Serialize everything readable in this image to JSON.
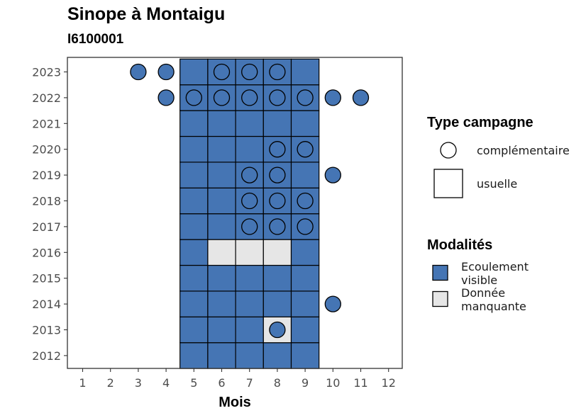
{
  "chart_data": {
    "type": "heatmap",
    "title": "Sinope à Montaigu",
    "subtitle": "I6100001",
    "xlabel": "Mois",
    "ylabel": "",
    "x": [
      1,
      2,
      3,
      4,
      5,
      6,
      7,
      8,
      9,
      10,
      11,
      12
    ],
    "y": [
      2012,
      2013,
      2014,
      2015,
      2016,
      2017,
      2018,
      2019,
      2020,
      2021,
      2022,
      2023
    ],
    "colors": {
      "Ecoulement visible": "#4575b4",
      "Donnée manquante": "#e6e6e6"
    },
    "cells": [
      {
        "year": 2012,
        "month": 5,
        "modalite": "Ecoulement visible",
        "type": "usuelle"
      },
      {
        "year": 2012,
        "month": 6,
        "modalite": "Ecoulement visible",
        "type": "usuelle"
      },
      {
        "year": 2012,
        "month": 7,
        "modalite": "Ecoulement visible",
        "type": "usuelle"
      },
      {
        "year": 2012,
        "month": 8,
        "modalite": "Ecoulement visible",
        "type": "usuelle"
      },
      {
        "year": 2012,
        "month": 9,
        "modalite": "Ecoulement visible",
        "type": "usuelle"
      },
      {
        "year": 2013,
        "month": 5,
        "modalite": "Ecoulement visible",
        "type": "usuelle"
      },
      {
        "year": 2013,
        "month": 6,
        "modalite": "Ecoulement visible",
        "type": "usuelle"
      },
      {
        "year": 2013,
        "month": 7,
        "modalite": "Ecoulement visible",
        "type": "usuelle"
      },
      {
        "year": 2013,
        "month": 8,
        "modalite": "Donnée manquante",
        "type": "usuelle"
      },
      {
        "year": 2013,
        "month": 9,
        "modalite": "Ecoulement visible",
        "type": "usuelle"
      },
      {
        "year": 2014,
        "month": 5,
        "modalite": "Ecoulement visible",
        "type": "usuelle"
      },
      {
        "year": 2014,
        "month": 6,
        "modalite": "Ecoulement visible",
        "type": "usuelle"
      },
      {
        "year": 2014,
        "month": 7,
        "modalite": "Ecoulement visible",
        "type": "usuelle"
      },
      {
        "year": 2014,
        "month": 8,
        "modalite": "Ecoulement visible",
        "type": "usuelle"
      },
      {
        "year": 2014,
        "month": 9,
        "modalite": "Ecoulement visible",
        "type": "usuelle"
      },
      {
        "year": 2015,
        "month": 5,
        "modalite": "Ecoulement visible",
        "type": "usuelle"
      },
      {
        "year": 2015,
        "month": 6,
        "modalite": "Ecoulement visible",
        "type": "usuelle"
      },
      {
        "year": 2015,
        "month": 7,
        "modalite": "Ecoulement visible",
        "type": "usuelle"
      },
      {
        "year": 2015,
        "month": 8,
        "modalite": "Ecoulement visible",
        "type": "usuelle"
      },
      {
        "year": 2015,
        "month": 9,
        "modalite": "Ecoulement visible",
        "type": "usuelle"
      },
      {
        "year": 2016,
        "month": 5,
        "modalite": "Ecoulement visible",
        "type": "usuelle"
      },
      {
        "year": 2016,
        "month": 6,
        "modalite": "Donnée manquante",
        "type": "usuelle"
      },
      {
        "year": 2016,
        "month": 7,
        "modalite": "Donnée manquante",
        "type": "usuelle"
      },
      {
        "year": 2016,
        "month": 8,
        "modalite": "Donnée manquante",
        "type": "usuelle"
      },
      {
        "year": 2016,
        "month": 9,
        "modalite": "Ecoulement visible",
        "type": "usuelle"
      },
      {
        "year": 2017,
        "month": 5,
        "modalite": "Ecoulement visible",
        "type": "usuelle"
      },
      {
        "year": 2017,
        "month": 6,
        "modalite": "Ecoulement visible",
        "type": "usuelle"
      },
      {
        "year": 2017,
        "month": 7,
        "modalite": "Ecoulement visible",
        "type": "usuelle"
      },
      {
        "year": 2017,
        "month": 8,
        "modalite": "Ecoulement visible",
        "type": "usuelle"
      },
      {
        "year": 2017,
        "month": 9,
        "modalite": "Ecoulement visible",
        "type": "usuelle"
      },
      {
        "year": 2018,
        "month": 5,
        "modalite": "Ecoulement visible",
        "type": "usuelle"
      },
      {
        "year": 2018,
        "month": 6,
        "modalite": "Ecoulement visible",
        "type": "usuelle"
      },
      {
        "year": 2018,
        "month": 7,
        "modalite": "Ecoulement visible",
        "type": "usuelle"
      },
      {
        "year": 2018,
        "month": 8,
        "modalite": "Ecoulement visible",
        "type": "usuelle"
      },
      {
        "year": 2018,
        "month": 9,
        "modalite": "Ecoulement visible",
        "type": "usuelle"
      },
      {
        "year": 2019,
        "month": 5,
        "modalite": "Ecoulement visible",
        "type": "usuelle"
      },
      {
        "year": 2019,
        "month": 6,
        "modalite": "Ecoulement visible",
        "type": "usuelle"
      },
      {
        "year": 2019,
        "month": 7,
        "modalite": "Ecoulement visible",
        "type": "usuelle"
      },
      {
        "year": 2019,
        "month": 8,
        "modalite": "Ecoulement visible",
        "type": "usuelle"
      },
      {
        "year": 2019,
        "month": 9,
        "modalite": "Ecoulement visible",
        "type": "usuelle"
      },
      {
        "year": 2020,
        "month": 5,
        "modalite": "Ecoulement visible",
        "type": "usuelle"
      },
      {
        "year": 2020,
        "month": 6,
        "modalite": "Ecoulement visible",
        "type": "usuelle"
      },
      {
        "year": 2020,
        "month": 7,
        "modalite": "Ecoulement visible",
        "type": "usuelle"
      },
      {
        "year": 2020,
        "month": 8,
        "modalite": "Ecoulement visible",
        "type": "usuelle"
      },
      {
        "year": 2020,
        "month": 9,
        "modalite": "Ecoulement visible",
        "type": "usuelle"
      },
      {
        "year": 2021,
        "month": 5,
        "modalite": "Ecoulement visible",
        "type": "usuelle"
      },
      {
        "year": 2021,
        "month": 6,
        "modalite": "Ecoulement visible",
        "type": "usuelle"
      },
      {
        "year": 2021,
        "month": 7,
        "modalite": "Ecoulement visible",
        "type": "usuelle"
      },
      {
        "year": 2021,
        "month": 8,
        "modalite": "Ecoulement visible",
        "type": "usuelle"
      },
      {
        "year": 2021,
        "month": 9,
        "modalite": "Ecoulement visible",
        "type": "usuelle"
      },
      {
        "year": 2022,
        "month": 5,
        "modalite": "Ecoulement visible",
        "type": "usuelle"
      },
      {
        "year": 2022,
        "month": 6,
        "modalite": "Ecoulement visible",
        "type": "usuelle"
      },
      {
        "year": 2022,
        "month": 7,
        "modalite": "Ecoulement visible",
        "type": "usuelle"
      },
      {
        "year": 2022,
        "month": 8,
        "modalite": "Ecoulement visible",
        "type": "usuelle"
      },
      {
        "year": 2022,
        "month": 9,
        "modalite": "Ecoulement visible",
        "type": "usuelle"
      },
      {
        "year": 2023,
        "month": 5,
        "modalite": "Ecoulement visible",
        "type": "usuelle"
      },
      {
        "year": 2023,
        "month": 6,
        "modalite": "Ecoulement visible",
        "type": "usuelle"
      },
      {
        "year": 2023,
        "month": 7,
        "modalite": "Ecoulement visible",
        "type": "usuelle"
      },
      {
        "year": 2023,
        "month": 8,
        "modalite": "Ecoulement visible",
        "type": "usuelle"
      },
      {
        "year": 2023,
        "month": 9,
        "modalite": "Ecoulement visible",
        "type": "usuelle"
      }
    ],
    "points": [
      {
        "year": 2013,
        "month": 8,
        "modalite": "Ecoulement visible",
        "type": "complémentaire"
      },
      {
        "year": 2014,
        "month": 10,
        "modalite": "Ecoulement visible",
        "type": "complémentaire"
      },
      {
        "year": 2017,
        "month": 7,
        "modalite": "Ecoulement visible",
        "type": "complémentaire"
      },
      {
        "year": 2017,
        "month": 8,
        "modalite": "Ecoulement visible",
        "type": "complémentaire"
      },
      {
        "year": 2017,
        "month": 9,
        "modalite": "Ecoulement visible",
        "type": "complémentaire"
      },
      {
        "year": 2018,
        "month": 7,
        "modalite": "Ecoulement visible",
        "type": "complémentaire"
      },
      {
        "year": 2018,
        "month": 8,
        "modalite": "Ecoulement visible",
        "type": "complémentaire"
      },
      {
        "year": 2018,
        "month": 9,
        "modalite": "Ecoulement visible",
        "type": "complémentaire"
      },
      {
        "year": 2019,
        "month": 7,
        "modalite": "Ecoulement visible",
        "type": "complémentaire"
      },
      {
        "year": 2019,
        "month": 8,
        "modalite": "Ecoulement visible",
        "type": "complémentaire"
      },
      {
        "year": 2019,
        "month": 10,
        "modalite": "Ecoulement visible",
        "type": "complémentaire"
      },
      {
        "year": 2020,
        "month": 8,
        "modalite": "Ecoulement visible",
        "type": "complémentaire"
      },
      {
        "year": 2020,
        "month": 9,
        "modalite": "Ecoulement visible",
        "type": "complémentaire"
      },
      {
        "year": 2022,
        "month": 4,
        "modalite": "Ecoulement visible",
        "type": "complémentaire"
      },
      {
        "year": 2022,
        "month": 5,
        "modalite": "Ecoulement visible",
        "type": "complémentaire"
      },
      {
        "year": 2022,
        "month": 6,
        "modalite": "Ecoulement visible",
        "type": "complémentaire"
      },
      {
        "year": 2022,
        "month": 7,
        "modalite": "Ecoulement visible",
        "type": "complémentaire"
      },
      {
        "year": 2022,
        "month": 8,
        "modalite": "Ecoulement visible",
        "type": "complémentaire"
      },
      {
        "year": 2022,
        "month": 9,
        "modalite": "Ecoulement visible",
        "type": "complémentaire"
      },
      {
        "year": 2022,
        "month": 10,
        "modalite": "Ecoulement visible",
        "type": "complémentaire"
      },
      {
        "year": 2022,
        "month": 11,
        "modalite": "Ecoulement visible",
        "type": "complémentaire"
      },
      {
        "year": 2023,
        "month": 3,
        "modalite": "Ecoulement visible",
        "type": "complémentaire"
      },
      {
        "year": 2023,
        "month": 4,
        "modalite": "Ecoulement visible",
        "type": "complémentaire"
      },
      {
        "year": 2023,
        "month": 6,
        "modalite": "Ecoulement visible",
        "type": "complémentaire"
      },
      {
        "year": 2023,
        "month": 7,
        "modalite": "Ecoulement visible",
        "type": "complémentaire"
      },
      {
        "year": 2023,
        "month": 8,
        "modalite": "Ecoulement visible",
        "type": "complémentaire"
      }
    ],
    "legends": [
      {
        "title": "Type campagne",
        "entries": [
          {
            "label": "complémentaire",
            "shape": "circle"
          },
          {
            "label": "usuelle",
            "shape": "square"
          }
        ]
      },
      {
        "title": "Modalités",
        "entries": [
          {
            "label": "Ecoulement visible",
            "lines": [
              "Ecoulement",
              "visible"
            ],
            "color": "#4575b4"
          },
          {
            "label": "Donnée manquante",
            "lines": [
              "Donnée",
              "manquante"
            ],
            "color": "#e6e6e6"
          }
        ]
      }
    ],
    "legend_position": "right",
    "grid": false
  }
}
